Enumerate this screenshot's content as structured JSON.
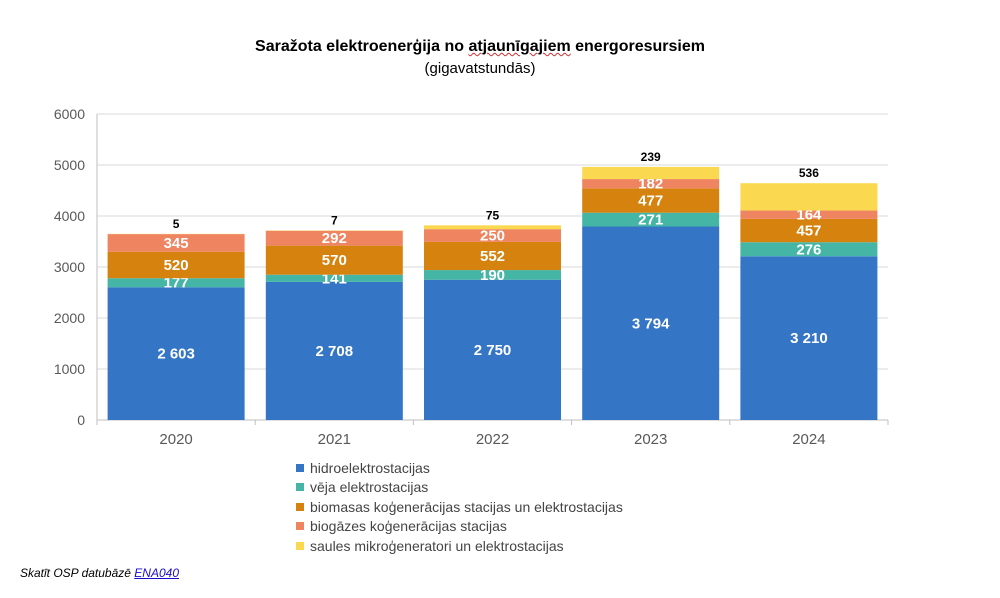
{
  "chart_data": {
    "type": "bar",
    "stacked": true,
    "title_parts": [
      "Saražota elektroenerģija no ",
      "atjaunīgajiem",
      " energoresursiem"
    ],
    "subtitle": "(gigavatstundās)",
    "categories": [
      "2020",
      "2021",
      "2022",
      "2023",
      "2024"
    ],
    "ylim": [
      0,
      6000
    ],
    "yticks": [
      "0",
      "1000",
      "2000",
      "3000",
      "4000",
      "5000",
      "6000"
    ],
    "grid": true,
    "legend_position": "bottom",
    "series": [
      {
        "name": "hidroelektrostacijas",
        "color": "#3575c6",
        "values": [
          2603,
          2708,
          2750,
          3794,
          3210
        ],
        "labels": [
          "2 603",
          "2 708",
          "2 750",
          "3 794",
          "3 210"
        ]
      },
      {
        "name": "vēja elektrostacijas",
        "color": "#45b5a5",
        "values": [
          177,
          141,
          190,
          271,
          276
        ],
        "labels": [
          "177",
          "141",
          "190",
          "271",
          "276"
        ]
      },
      {
        "name": "biomasas koģenerācijas stacijas un elektrostacijas",
        "color": "#d6820f",
        "values": [
          520,
          570,
          552,
          477,
          457
        ],
        "labels": [
          "520",
          "570",
          "552",
          "477",
          "457"
        ]
      },
      {
        "name": "biogāzes koģenerācijas stacijas",
        "color": "#ef8461",
        "values": [
          345,
          292,
          250,
          182,
          164
        ],
        "labels": [
          "345",
          "292",
          "250",
          "182",
          "164"
        ]
      },
      {
        "name": "saules mikroģeneratori un elektrostacijas",
        "color": "#fad850",
        "values": [
          5,
          7,
          75,
          239,
          536
        ],
        "labels": [
          "5",
          "7",
          "75",
          "239",
          "536"
        ]
      }
    ]
  },
  "footer": {
    "text": "Skatīt OSP datubāzē ",
    "link_text": "ENA040"
  }
}
